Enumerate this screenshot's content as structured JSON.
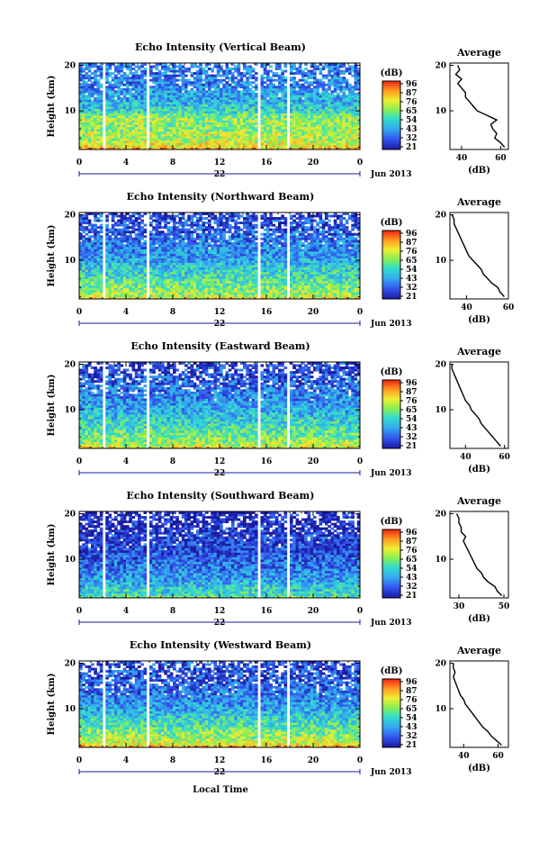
{
  "figure": {
    "xaxis_title": "Local Time",
    "x_ticks": [
      "0",
      "4",
      "8",
      "12",
      "16",
      "20",
      "0"
    ],
    "day_label": "22",
    "date_label": "Jun 2013",
    "height_label": "Height (km)",
    "y_ticks": [
      "20",
      "10"
    ],
    "colorbar_unit": "(dB)",
    "colorbar_ticks": [
      "96",
      "87",
      "76",
      "65",
      "54",
      "43",
      "32",
      "21"
    ],
    "avg_title": "Average",
    "avg_xlabel": "(dB)"
  },
  "chart_data": [
    {
      "type": "heatmap",
      "title": "Echo Intensity (Vertical Beam)",
      "xlabel": "",
      "ylabel": "Height (km)",
      "xlim": [
        0,
        24
      ],
      "ylim": [
        1.5,
        20.5
      ],
      "zlim": [
        21,
        96
      ],
      "data_gaps_hours": [
        [
          2.0,
          2.3
        ],
        [
          5.7,
          6.0
        ],
        [
          15.3,
          15.6
        ],
        [
          17.8,
          18.1
        ]
      ],
      "profile": {
        "title": "Average",
        "xlabel": "(dB)",
        "x_ticks": [
          "40",
          "60"
        ],
        "xlim": [
          34,
          64
        ],
        "heights": [
          2,
          3,
          4,
          5,
          6,
          7,
          8,
          9,
          10,
          11,
          12,
          13,
          14,
          15,
          16,
          17,
          18,
          19,
          20
        ],
        "values": [
          62,
          60,
          57,
          58,
          56,
          55,
          58,
          53,
          48,
          46,
          44,
          42,
          42,
          40,
          38,
          40,
          37,
          39,
          38
        ]
      }
    },
    {
      "type": "heatmap",
      "title": "Echo Intensity (Northward Beam)",
      "xlabel": "",
      "ylabel": "Height (km)",
      "xlim": [
        0,
        24
      ],
      "ylim": [
        1.5,
        20.5
      ],
      "zlim": [
        21,
        96
      ],
      "data_gaps_hours": [
        [
          2.0,
          2.3
        ],
        [
          5.7,
          6.0
        ],
        [
          15.3,
          15.6
        ],
        [
          17.8,
          18.1
        ]
      ],
      "profile": {
        "title": "Average",
        "xlabel": "(dB)",
        "x_ticks": [
          "40",
          "60"
        ],
        "xlim": [
          32,
          60
        ],
        "heights": [
          2,
          3,
          4,
          5,
          6,
          7,
          8,
          9,
          10,
          11,
          12,
          13,
          14,
          15,
          16,
          17,
          18,
          19,
          20
        ],
        "values": [
          58,
          56,
          55,
          52,
          50,
          48,
          47,
          45,
          43,
          41,
          40,
          39,
          38,
          37,
          36,
          35,
          34,
          34,
          33
        ]
      }
    },
    {
      "type": "heatmap",
      "title": "Echo Intensity (Eastward Beam)",
      "xlabel": "",
      "ylabel": "Height (km)",
      "xlim": [
        0,
        24
      ],
      "ylim": [
        1.5,
        20.5
      ],
      "zlim": [
        21,
        96
      ],
      "data_gaps_hours": [
        [
          2.0,
          2.3
        ],
        [
          5.7,
          6.0
        ],
        [
          15.3,
          15.6
        ],
        [
          17.8,
          18.1
        ]
      ],
      "profile": {
        "title": "Average",
        "xlabel": "(dB)",
        "x_ticks": [
          "40",
          "60"
        ],
        "xlim": [
          32,
          62
        ],
        "heights": [
          2,
          3,
          4,
          5,
          6,
          7,
          8,
          9,
          10,
          11,
          12,
          13,
          14,
          15,
          16,
          17,
          18,
          19,
          20
        ],
        "values": [
          58,
          56,
          54,
          52,
          50,
          48,
          47,
          45,
          43,
          42,
          40,
          39,
          38,
          37,
          36,
          35,
          34,
          33,
          33
        ]
      }
    },
    {
      "type": "heatmap",
      "title": "Echo Intensity (Southward Beam)",
      "xlabel": "",
      "ylabel": "Height (km)",
      "xlim": [
        0,
        24
      ],
      "ylim": [
        1.5,
        20.5
      ],
      "zlim": [
        21,
        96
      ],
      "data_gaps_hours": [
        [
          2.0,
          2.3
        ],
        [
          5.7,
          6.0
        ],
        [
          15.3,
          15.6
        ],
        [
          17.8,
          18.1
        ]
      ],
      "profile": {
        "title": "Average",
        "xlabel": "(dB)",
        "x_ticks": [
          "30",
          "50"
        ],
        "xlim": [
          26,
          52
        ],
        "heights": [
          2,
          3,
          4,
          5,
          6,
          7,
          8,
          9,
          10,
          11,
          12,
          13,
          14,
          15,
          16,
          17,
          18,
          19,
          20
        ],
        "values": [
          49,
          47,
          46,
          43,
          41,
          40,
          38,
          37,
          36,
          35,
          34,
          33,
          32,
          33,
          31,
          31,
          30,
          30,
          29
        ]
      }
    },
    {
      "type": "heatmap",
      "title": "Echo Intensity (Westward Beam)",
      "xlabel": "",
      "ylabel": "Height (km)",
      "xlim": [
        0,
        24
      ],
      "ylim": [
        1.5,
        20.5
      ],
      "zlim": [
        21,
        96
      ],
      "data_gaps_hours": [
        [
          2.0,
          2.3
        ],
        [
          5.7,
          6.0
        ],
        [
          15.3,
          15.6
        ],
        [
          17.8,
          18.1
        ]
      ],
      "profile": {
        "title": "Average",
        "xlabel": "(dB)",
        "x_ticks": [
          "40",
          "60"
        ],
        "xlim": [
          32,
          66
        ],
        "heights": [
          2,
          3,
          4,
          5,
          6,
          7,
          8,
          9,
          10,
          11,
          12,
          13,
          14,
          15,
          16,
          17,
          18,
          19,
          20
        ],
        "values": [
          62,
          59,
          56,
          54,
          51,
          49,
          47,
          45,
          43,
          41,
          40,
          38,
          37,
          36,
          35,
          34,
          35,
          34,
          34
        ]
      }
    }
  ]
}
